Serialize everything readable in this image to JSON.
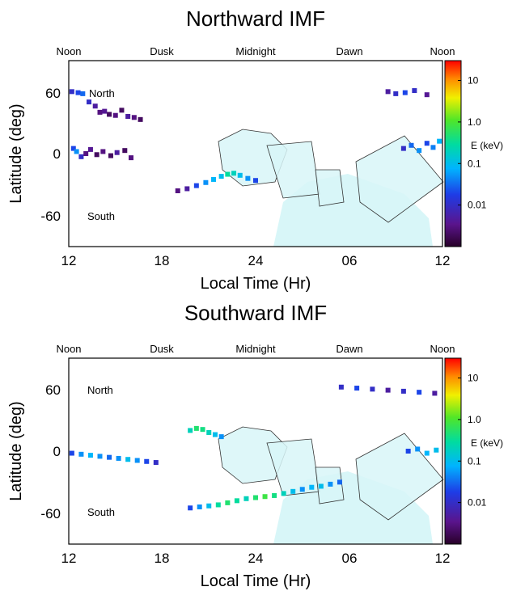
{
  "colors": {
    "map_fill": "#d8f6f8",
    "map_stroke": "#333333",
    "frame": "#000000"
  },
  "chart_data": [
    {
      "type": "heatmap",
      "title": "Northward IMF",
      "xlabel": "Local Time (Hr)",
      "ylabel": "Latitude (deg)",
      "x_ticks": [
        "12",
        "18",
        "24",
        "06",
        "12"
      ],
      "y_ticks": [
        "60",
        "0",
        "-60"
      ],
      "xlim": [
        12,
        36
      ],
      "ylim": [
        -90,
        90
      ],
      "top_labels": [
        "Noon",
        "Dusk",
        "Midnight",
        "Dawn",
        "Noon"
      ],
      "annotations": [
        "North",
        "South"
      ],
      "colorbar": {
        "label": "E (keV)",
        "ticks": [
          "10",
          "1.0",
          "0.1",
          "0.01"
        ],
        "scale": "log",
        "range": [
          0.001,
          30
        ]
      },
      "series": [
        {
          "x": [
            12.2,
            12.6,
            12.9,
            13.3,
            13.7,
            14.0,
            14.3,
            14.6,
            15.0,
            15.4,
            15.8,
            16.2,
            16.6
          ],
          "y": [
            60,
            59,
            58,
            50,
            46,
            40,
            41,
            38,
            37,
            42,
            36,
            35,
            33
          ],
          "e": [
            0.01,
            0.02,
            0.03,
            0.01,
            0.005,
            0.003,
            0.004,
            0.002,
            0.003,
            0.002,
            0.005,
            0.003,
            0.002
          ]
        },
        {
          "x": [
            12.3,
            12.5,
            12.8,
            13.1,
            13.4,
            13.8,
            14.2,
            14.7,
            15.1,
            15.6,
            16.0
          ],
          "y": [
            5,
            2,
            -3,
            0,
            4,
            -1,
            2,
            -2,
            1,
            3,
            -4
          ],
          "e": [
            0.02,
            0.05,
            0.01,
            0.003,
            0.004,
            0.002,
            0.003,
            0.002,
            0.005,
            0.002,
            0.003
          ]
        },
        {
          "x": [
            19.0,
            19.6,
            20.2,
            20.8,
            21.3,
            21.8,
            22.2,
            22.6,
            23.0,
            23.5,
            24.0
          ],
          "y": [
            -36,
            -34,
            -31,
            -28,
            -25,
            -22,
            -20,
            -19,
            -21,
            -24,
            -26
          ],
          "e": [
            0.003,
            0.005,
            0.02,
            0.05,
            0.08,
            0.1,
            0.3,
            0.2,
            0.1,
            0.05,
            0.02
          ]
        },
        {
          "x": [
            33.5,
            34.0,
            34.5,
            35.0,
            35.4,
            35.8
          ],
          "y": [
            5,
            8,
            3,
            10,
            6,
            12
          ],
          "e": [
            0.01,
            0.03,
            0.05,
            0.02,
            0.04,
            0.08
          ]
        },
        {
          "x": [
            32.5,
            33.0,
            33.6,
            34.2,
            35.0
          ],
          "y": [
            60,
            58,
            59,
            61,
            57
          ],
          "e": [
            0.005,
            0.01,
            0.02,
            0.01,
            0.004
          ]
        }
      ]
    },
    {
      "type": "heatmap",
      "title": "Southward IMF",
      "xlabel": "Local Time (Hr)",
      "ylabel": "Latitude (deg)",
      "x_ticks": [
        "12",
        "18",
        "24",
        "06",
        "12"
      ],
      "y_ticks": [
        "60",
        "0",
        "-60"
      ],
      "xlim": [
        12,
        36
      ],
      "ylim": [
        -90,
        90
      ],
      "top_labels": [
        "Noon",
        "Dusk",
        "Midnight",
        "Dawn",
        "Noon"
      ],
      "annotations": [
        "North",
        "South"
      ],
      "colorbar": {
        "label": "E (keV)",
        "ticks": [
          "10",
          "1.0",
          "0.1",
          "0.01"
        ],
        "scale": "log",
        "range": [
          0.001,
          30
        ]
      },
      "series": [
        {
          "x": [
            12.2,
            12.8,
            13.4,
            14.0,
            14.6,
            15.2,
            15.8,
            16.4,
            17.0,
            17.6
          ],
          "y": [
            -2,
            -3,
            -4,
            -5,
            -6,
            -7,
            -8,
            -9,
            -10,
            -11
          ],
          "e": [
            0.02,
            0.05,
            0.08,
            0.05,
            0.03,
            0.05,
            0.1,
            0.05,
            0.02,
            0.01
          ]
        },
        {
          "x": [
            19.8,
            20.4,
            21.0,
            21.6,
            22.2,
            22.8,
            23.4,
            24.0,
            24.6,
            25.2,
            25.8,
            26.4,
            27.0,
            27.6,
            28.2,
            28.8,
            29.4
          ],
          "y": [
            -55,
            -54,
            -53,
            -52,
            -50,
            -48,
            -46,
            -45,
            -44,
            -43,
            -41,
            -39,
            -37,
            -35,
            -34,
            -32,
            -30
          ],
          "e": [
            0.02,
            0.05,
            0.1,
            0.3,
            0.5,
            0.3,
            0.2,
            0.5,
            0.8,
            0.4,
            0.2,
            0.1,
            0.05,
            0.08,
            0.1,
            0.05,
            0.03
          ]
        },
        {
          "x": [
            19.8,
            20.2,
            20.6,
            21.0,
            21.4,
            21.8
          ],
          "y": [
            20,
            22,
            21,
            18,
            16,
            14
          ],
          "e": [
            0.2,
            0.5,
            0.4,
            0.2,
            0.1,
            0.05
          ]
        },
        {
          "x": [
            29.5,
            30.5,
            31.5,
            32.5,
            33.5,
            34.5,
            35.5
          ],
          "y": [
            62,
            61,
            60,
            59,
            58,
            57,
            56
          ],
          "e": [
            0.01,
            0.02,
            0.01,
            0.005,
            0.01,
            0.02,
            0.005
          ]
        },
        {
          "x": [
            33.8,
            34.4,
            35.0,
            35.6
          ],
          "y": [
            0,
            2,
            -2,
            1
          ],
          "e": [
            0.02,
            0.05,
            0.08,
            0.1
          ]
        }
      ]
    }
  ]
}
